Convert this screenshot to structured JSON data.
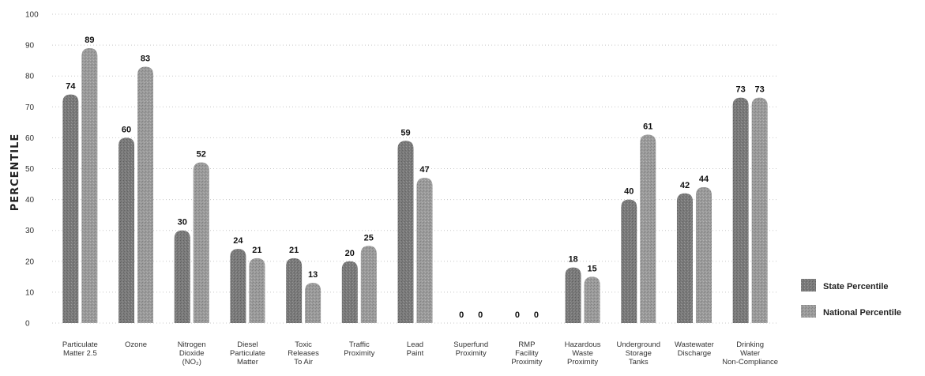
{
  "chart_data": {
    "type": "bar",
    "ylabel": "PERCENTILE",
    "xlabel": "",
    "ylim": [
      0,
      100
    ],
    "yticks": [
      0,
      10,
      20,
      30,
      40,
      50,
      60,
      70,
      80,
      90,
      100
    ],
    "grid": true,
    "legend_position": "bottom-right",
    "categories": [
      [
        "Particulate",
        "Matter 2.5"
      ],
      [
        "Ozone"
      ],
      [
        "Nitrogen",
        "Dioxide",
        "(NO₂)"
      ],
      [
        "Diesel",
        "Particulate",
        "Matter"
      ],
      [
        "Toxic",
        "Releases",
        "To Air"
      ],
      [
        "Traffic",
        "Proximity"
      ],
      [
        "Lead",
        "Paint"
      ],
      [
        "Superfund",
        "Proximity"
      ],
      [
        "RMP",
        "Facility",
        "Proximity"
      ],
      [
        "Hazardous",
        "Waste",
        "Proximity"
      ],
      [
        "Underground",
        "Storage",
        "Tanks"
      ],
      [
        "Wastewater",
        "Discharge"
      ],
      [
        "Drinking",
        "Water",
        "Non-Compliance"
      ]
    ],
    "series": [
      {
        "name": "State Percentile",
        "color": "#7a7a7a",
        "values": [
          74,
          60,
          30,
          24,
          21,
          20,
          59,
          0,
          0,
          18,
          40,
          42,
          73
        ]
      },
      {
        "name": "National Percentile",
        "color": "#9a9a9a",
        "values": [
          89,
          83,
          52,
          21,
          13,
          25,
          47,
          0,
          0,
          15,
          61,
          44,
          73
        ]
      }
    ]
  }
}
